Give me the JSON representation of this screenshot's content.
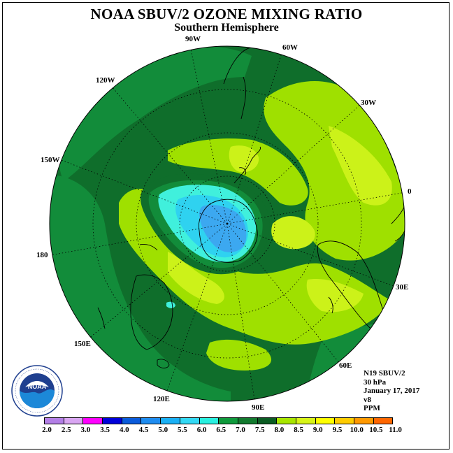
{
  "title": "NOAA SBUV/2 OZONE MIXING RATIO",
  "subtitle": "Southern Hemisphere",
  "longitude_labels": {
    "w90": "90W",
    "w60": "60W",
    "w30": "30W",
    "zero": "0",
    "e30": "30E",
    "e60": "60E",
    "e90": "90E",
    "e120": "120E",
    "e150": "150E",
    "d180": "180",
    "w150": "150W",
    "w120": "120W"
  },
  "info": {
    "instrument": "N19 SBUV/2",
    "level": "30 hPa",
    "date": "January 17, 2017",
    "version": "v8",
    "units": "PPM"
  },
  "logo": {
    "text": "NOAA",
    "ring_text": "NATIONAL OCEANIC AND ATMOSPHERIC ADMINISTRATION · U.S. DEPARTMENT OF COMMERCE"
  },
  "colorbar": {
    "ticks": [
      "2.0",
      "2.5",
      "3.0",
      "3.5",
      "4.0",
      "4.5",
      "5.0",
      "5.5",
      "6.0",
      "6.5",
      "7.0",
      "7.5",
      "8.0",
      "8.5",
      "9.0",
      "9.5",
      "10.0",
      "10.5",
      "11.0"
    ],
    "colors": [
      "#b37fe6",
      "#d9a6f2",
      "#ff00ff",
      "#0000d9",
      "#0a5bdb",
      "#1e8cf0",
      "#1ab0f5",
      "#33d9f5",
      "#29f0e0",
      "#0f9a3c",
      "#127a2e",
      "#0a5c22",
      "#a8e600",
      "#d8f518",
      "#ffff00",
      "#ffcc00",
      "#ff9900",
      "#ff6600",
      "#e60000",
      "#8c5a2e"
    ]
  },
  "legend_colors": {
    "c6.0-6.5": "#128c3a",
    "c6.5-7.0": "#0f6e2b",
    "c7.0-7.5": "#9fe000",
    "c7.5-8.0": "#ccf219",
    "c4.5-5.0": "#3ca8f0",
    "c5.0-5.5": "#2fd2f0",
    "c5.5-6.0": "#40f0dc"
  }
}
